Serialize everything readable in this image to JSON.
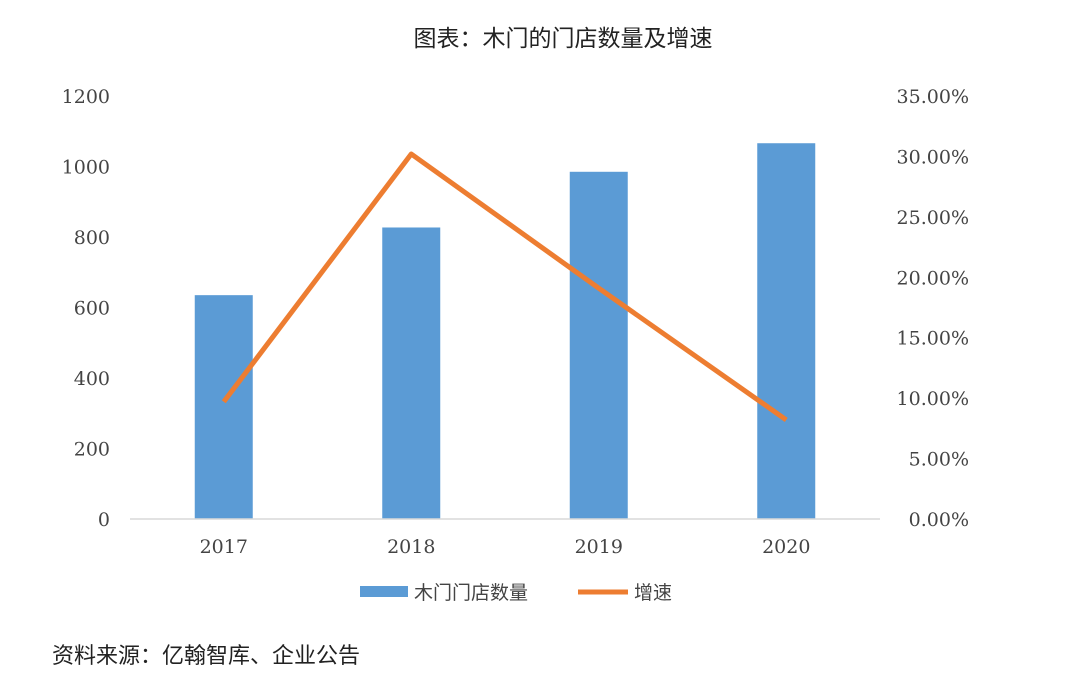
{
  "chart_data": {
    "type": "bar+line",
    "title": "图表：木门的门店数量及增速",
    "categories": [
      "2017",
      "2018",
      "2019",
      "2020"
    ],
    "series": [
      {
        "name": "木门门店数量",
        "type": "bar",
        "axis": "left",
        "color": "#5B9BD5",
        "values": [
          635,
          827,
          985,
          1066
        ]
      },
      {
        "name": "增速",
        "type": "line",
        "axis": "right",
        "color": "#ED7D31",
        "values": [
          0.097,
          0.302,
          0.191,
          0.082
        ]
      }
    ],
    "y_left": {
      "min": 0,
      "max": 1200,
      "ticks": [
        0,
        200,
        400,
        600,
        800,
        1000,
        1200
      ],
      "tick_labels": [
        "0",
        "200",
        "400",
        "600",
        "800",
        "1000",
        "1200"
      ]
    },
    "y_right": {
      "min": 0,
      "max": 0.35,
      "ticks": [
        0,
        0.05,
        0.1,
        0.15,
        0.2,
        0.25,
        0.3,
        0.35
      ],
      "tick_labels": [
        "0.00%",
        "5.00%",
        "10.00%",
        "15.00%",
        "20.00%",
        "25.00%",
        "30.00%",
        "35.00%"
      ]
    },
    "grid": false,
    "legend_position": "bottom"
  },
  "source_note": "资料来源：亿翰智库、企业公告"
}
